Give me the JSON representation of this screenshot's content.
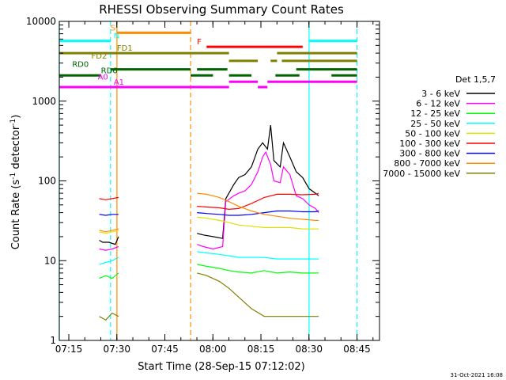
{
  "chart_data": {
    "type": "line",
    "title": "RHESSI Observing Summary Count Rates",
    "xlabel": "Start Time (28-Sep-15 07:12:02)",
    "ylabel_main": "Count Rate (s",
    "ylabel_sup": "-1",
    "ylabel_mid": " detector",
    "ylabel_end": ")",
    "footer": "31-Oct-2021 16:08",
    "x_unit": "minutes after 07:12:02 UT",
    "xlim": [
      0,
      100
    ],
    "ylim": [
      1,
      10000
    ],
    "y_scale": "log",
    "x_ticks": [
      {
        "label": "07:15",
        "value": 2.97
      },
      {
        "label": "07:30",
        "value": 17.97
      },
      {
        "label": "07:45",
        "value": 32.97
      },
      {
        "label": "08:00",
        "value": 47.97
      },
      {
        "label": "08:15",
        "value": 62.97
      },
      {
        "label": "08:30",
        "value": 77.97
      },
      {
        "label": "08:45",
        "value": 92.97
      }
    ],
    "y_ticks": [
      {
        "label": "1",
        "value": 1
      },
      {
        "label": "10",
        "value": 10
      },
      {
        "label": "100",
        "value": 100
      },
      {
        "label": "1000",
        "value": 1000
      },
      {
        "label": "10000",
        "value": 10000
      }
    ],
    "legend": {
      "title": "Det 1,5,7",
      "position": "right"
    },
    "series": [
      {
        "name": "3 - 6 keV",
        "color": "#000000",
        "segments": [
          {
            "x": [
              12.5,
              13.5,
              15.5,
              17.5,
              18.5
            ],
            "y": [
              18,
              17,
              17,
              16,
              20
            ]
          },
          {
            "x": [
              43.0,
              45.0,
              48.0,
              51.0,
              52.0,
              54.5,
              56.0,
              58.0,
              60.0,
              62.0,
              63.5,
              65.0,
              66.0,
              67.0,
              69.0,
              70.0,
              72.0,
              74.0,
              76.0,
              78.0,
              80.0,
              81.0
            ],
            "y": [
              22,
              21,
              20,
              19,
              60,
              90,
              110,
              120,
              150,
              250,
              300,
              250,
              500,
              180,
              150,
              300,
              200,
              130,
              110,
              80,
              70,
              65
            ]
          }
        ]
      },
      {
        "name": "6 - 12 keV",
        "color": "#ff00ff",
        "segments": [
          {
            "x": [
              12.5,
              14.5,
              16.5,
              18.5
            ],
            "y": [
              14,
              13.5,
              14,
              15
            ]
          },
          {
            "x": [
              43.0,
              45.0,
              48.0,
              51.0,
              52.0,
              54.5,
              56.0,
              58.0,
              60.0,
              62.0,
              63.5,
              64.5,
              66.0,
              67.0,
              69.0,
              70.0,
              72.0,
              74.0,
              76.0,
              78.0,
              80.0,
              81.0
            ],
            "y": [
              16,
              15,
              14,
              15,
              55,
              65,
              70,
              75,
              90,
              130,
              200,
              230,
              160,
              100,
              95,
              150,
              120,
              65,
              60,
              50,
              45,
              40
            ]
          }
        ]
      },
      {
        "name": "12 - 25 keV",
        "color": "#00ff00",
        "segments": [
          {
            "x": [
              12.5,
              14.5,
              16.5,
              18.5
            ],
            "y": [
              6,
              6.5,
              6,
              7
            ]
          },
          {
            "x": [
              43.0,
              46.0,
              50.0,
              53.0,
              56.0,
              60.0,
              64.0,
              68.0,
              72.0,
              76.0,
              80.0,
              81.0
            ],
            "y": [
              9,
              8.5,
              8,
              7.5,
              7.2,
              7,
              7.5,
              7,
              7.2,
              7,
              7,
              7
            ]
          }
        ]
      },
      {
        "name": "25 - 50 keV",
        "color": "#00ffff",
        "segments": [
          {
            "x": [
              12.5,
              14.5,
              16.5,
              18.5
            ],
            "y": [
              9,
              9.5,
              10,
              11
            ]
          },
          {
            "x": [
              43.0,
              46.0,
              50.0,
              53.0,
              56.0,
              60.0,
              64.0,
              68.0,
              72.0,
              76.0,
              80.0,
              81.0
            ],
            "y": [
              13,
              12.5,
              12,
              11.5,
              11,
              11,
              11,
              10.5,
              10.5,
              10.5,
              10.5,
              10.5
            ]
          }
        ]
      },
      {
        "name": "50 - 100 keV",
        "color": "#e0e000",
        "segments": [
          {
            "x": [
              12.5,
              14.5,
              16.5,
              18.5
            ],
            "y": [
              23,
              22,
              23,
              24
            ]
          },
          {
            "x": [
              43.0,
              46.0,
              50.0,
              53.0,
              56.0,
              60.0,
              64.0,
              68.0,
              72.0,
              76.0,
              80.0,
              81.0
            ],
            "y": [
              35,
              34,
              32,
              30,
              28,
              27,
              26,
              26,
              26,
              25,
              25,
              25
            ]
          }
        ]
      },
      {
        "name": "100 - 300 keV",
        "color": "#ff0000",
        "segments": [
          {
            "x": [
              12.5,
              14.5,
              16.5,
              18.5
            ],
            "y": [
              60,
              58,
              60,
              62
            ]
          },
          {
            "x": [
              43.0,
              46.0,
              50.0,
              53.0,
              56.0,
              60.0,
              64.0,
              68.0,
              72.0,
              76.0,
              80.0,
              81.0
            ],
            "y": [
              48,
              47,
              46,
              44,
              45,
              52,
              62,
              68,
              68,
              67,
              68,
              70
            ]
          }
        ]
      },
      {
        "name": "300 - 800 keV",
        "color": "#0000ff",
        "segments": [
          {
            "x": [
              12.5,
              14.5,
              16.5,
              18.5
            ],
            "y": [
              38,
              37,
              38,
              38
            ]
          },
          {
            "x": [
              43.0,
              46.0,
              50.0,
              53.0,
              56.0,
              60.0,
              64.0,
              68.0,
              72.0,
              76.0,
              80.0,
              81.0
            ],
            "y": [
              40,
              39,
              38,
              37,
              37,
              38,
              40,
              42,
              42,
              41,
              41,
              42
            ]
          }
        ]
      },
      {
        "name": "800 - 7000 keV",
        "color": "#ff8c00",
        "segments": [
          {
            "x": [
              12.5,
              14.5,
              16.5,
              18.5
            ],
            "y": [
              24,
              23,
              24,
              25
            ]
          },
          {
            "x": [
              43.0,
              46.0,
              50.0,
              53.0,
              56.0,
              60.0,
              64.0,
              68.0,
              72.0,
              76.0,
              80.0,
              81.0
            ],
            "y": [
              70,
              68,
              62,
              55,
              48,
              42,
              38,
              36,
              34,
              33,
              32,
              32
            ]
          }
        ]
      },
      {
        "name": "7000 - 15000 keV",
        "color": "#808000",
        "segments": [
          {
            "x": [
              12.5,
              14.5,
              16.5,
              18.5
            ],
            "y": [
              2,
              1.8,
              2.2,
              2
            ]
          },
          {
            "x": [
              43.0,
              46.0,
              50.0,
              53.0,
              56.0,
              60.0,
              64.0,
              68.0,
              72.0,
              76.0,
              80.0,
              81.0
            ],
            "y": [
              7,
              6.5,
              5.5,
              4.5,
              3.5,
              2.5,
              2,
              2,
              2,
              2,
              2,
              2
            ]
          }
        ]
      }
    ],
    "vertical_lines": [
      {
        "x": 0.0,
        "color": "#00ffff",
        "style": "solid"
      },
      {
        "x": 16.0,
        "color": "#00ffff",
        "style": "dashed"
      },
      {
        "x": 18.0,
        "color": "#ff8c00",
        "style": "solid"
      },
      {
        "x": 41.0,
        "color": "#ff8c00",
        "style": "dashed"
      },
      {
        "x": 78.0,
        "color": "#00ffff",
        "style": "solid"
      },
      {
        "x": 93.0,
        "color": "#00ffff",
        "style": "dashed"
      }
    ],
    "status_flags": [
      {
        "label": "S",
        "color": "#ff8c00",
        "y": 7200,
        "label_x": 16.0,
        "segments": [
          [
            18.0,
            41.0
          ]
        ]
      },
      {
        "label": "N",
        "color": "#00ffff",
        "y": 5700,
        "label_x": 17.0,
        "segments": [
          [
            0.0,
            16.0
          ],
          [
            78.0,
            93.0
          ]
        ]
      },
      {
        "label": "F",
        "color": "#ff0000",
        "y": 4800,
        "label_x": 43.0,
        "segments": [
          [
            46.0,
            76.0
          ]
        ]
      },
      {
        "label": "FD1",
        "color": "#808000",
        "y": 4000,
        "label_x": 18.0,
        "segments": [
          [
            0.0,
            53.0
          ],
          [
            68.0,
            93.0
          ]
        ]
      },
      {
        "label": "FD2",
        "color": "#808000",
        "y": 3200,
        "label_x": 10.0,
        "segments": [
          [
            53.0,
            62.0
          ],
          [
            66.0,
            68.0
          ],
          [
            69.5,
            93.0
          ]
        ]
      },
      {
        "label": "RD0",
        "color": "#006400",
        "y": 2500,
        "label_x": 4.0,
        "segments": [
          [
            16.0,
            41.0
          ],
          [
            43.0,
            52.5
          ],
          [
            74.0,
            93.0
          ]
        ]
      },
      {
        "label": "RD6",
        "color": "#006400",
        "y": 2100,
        "label_x": 13.0,
        "segments": [
          [
            0.0,
            13.0
          ],
          [
            41.0,
            48.0
          ],
          [
            53.0,
            60.0
          ],
          [
            67.5,
            75.0
          ],
          [
            85.0,
            93.0
          ]
        ]
      },
      {
        "label": "A0",
        "color": "#ff00ff",
        "y": 1750,
        "label_x": 12.0,
        "segments": [
          [
            53.0,
            62.0
          ],
          [
            65.0,
            93.0
          ]
        ]
      },
      {
        "label": "A1",
        "color": "#ff00ff",
        "y": 1500,
        "label_x": 17.0,
        "segments": [
          [
            0.0,
            53.0
          ],
          [
            62.0,
            65.0
          ]
        ]
      }
    ],
    "grid": false
  }
}
